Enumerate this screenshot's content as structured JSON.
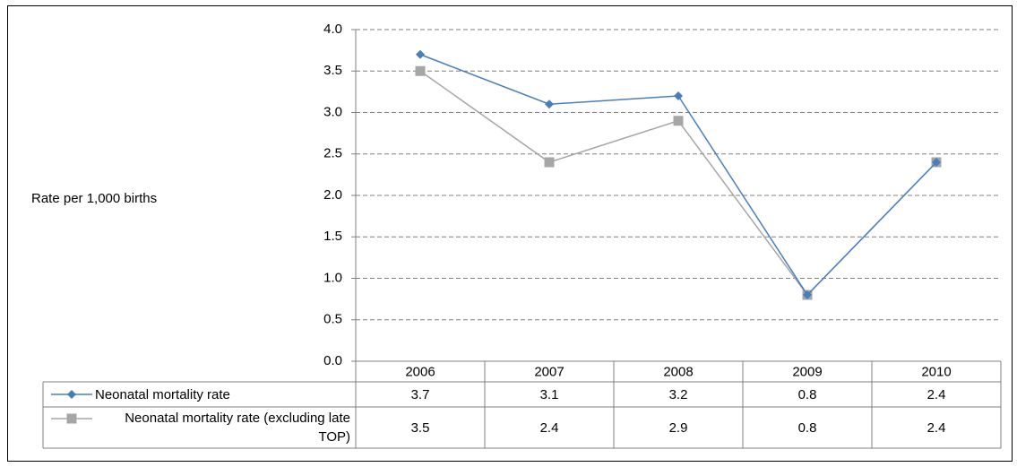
{
  "chart_data": {
    "type": "line",
    "y_label": "Rate per 1,000 births",
    "categories": [
      "2006",
      "2007",
      "2008",
      "2009",
      "2010"
    ],
    "series": [
      {
        "name": "Neonatal mortality rate",
        "color": "#4a7ebb",
        "marker": "diamond",
        "values": [
          3.7,
          3.1,
          3.2,
          0.8,
          2.4
        ]
      },
      {
        "name": "Neonatal mortality rate (excluding late TOP)",
        "color": "#a6a6a6",
        "marker": "square",
        "values": [
          3.5,
          2.4,
          2.9,
          0.8,
          2.4
        ]
      }
    ],
    "ylim": [
      0,
      4
    ],
    "yticks": [
      {
        "value": 0,
        "label": "0.0"
      },
      {
        "value": 0.5,
        "label": "0.5"
      },
      {
        "value": 1,
        "label": "1.0"
      },
      {
        "value": 1.5,
        "label": "1.5"
      },
      {
        "value": 2,
        "label": "2.0"
      },
      {
        "value": 2.5,
        "label": "2.5"
      },
      {
        "value": 3,
        "label": "3.0"
      },
      {
        "value": 3.5,
        "label": "3.5"
      },
      {
        "value": 4,
        "label": "4.0"
      }
    ],
    "grid": true
  }
}
